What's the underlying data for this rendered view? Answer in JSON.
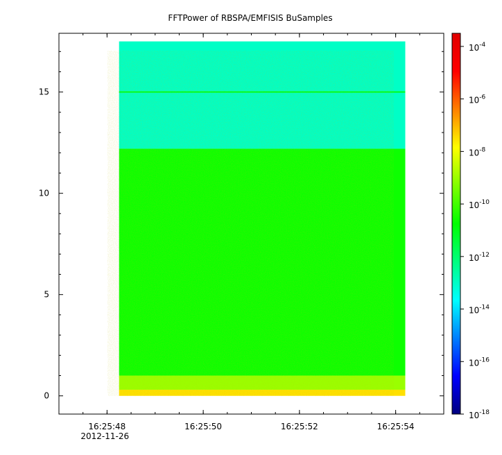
{
  "chart_data": {
    "type": "heatmap",
    "title": "FFTPower of RBSPA/EMFISIS  BuSamples",
    "xlabel": "",
    "ylabel": "",
    "x_ticks": [
      {
        "value": "16:25:48",
        "sub": "2012-11-26"
      },
      {
        "value": "16:25:50",
        "sub": ""
      },
      {
        "value": "16:25:52",
        "sub": ""
      },
      {
        "value": "16:25:54",
        "sub": ""
      }
    ],
    "x_range": [
      "16:25:47.0",
      "16:25:55.0"
    ],
    "data_x_range": [
      "16:25:48.25",
      "16:25:54.2"
    ],
    "y_ticks": [
      0,
      5,
      10,
      15
    ],
    "ylim": [
      -0.9,
      17.9
    ],
    "data_y_range": [
      0,
      17.5
    ],
    "colorbar": {
      "scale": "log",
      "range_exp": [
        -18,
        -3.5
      ],
      "tick_base": "10",
      "tick_exponents": [
        "-4",
        "-6",
        "-8",
        "-10",
        "-12",
        "-14",
        "-16",
        "-18"
      ],
      "colormap": [
        "#00007f",
        "#0000ff",
        "#007fff",
        "#00ffff",
        "#00ff80",
        "#00ff00",
        "#80ff00",
        "#ffff00",
        "#ff8000",
        "#ff0000",
        "#e00000"
      ]
    },
    "bands": [
      {
        "y_from": 12.2,
        "y_to": 17.5,
        "level_exp": -13.0
      },
      {
        "y_from": 1.0,
        "y_to": 12.2,
        "level_exp": -10.6
      },
      {
        "y_from": 0.3,
        "y_to": 1.0,
        "level_exp": -9.0
      },
      {
        "y_from": 0.0,
        "y_to": 0.3,
        "level_exp": -7.5
      }
    ],
    "lines": [
      {
        "y": 15.0,
        "level_exp": -11.0
      }
    ]
  }
}
